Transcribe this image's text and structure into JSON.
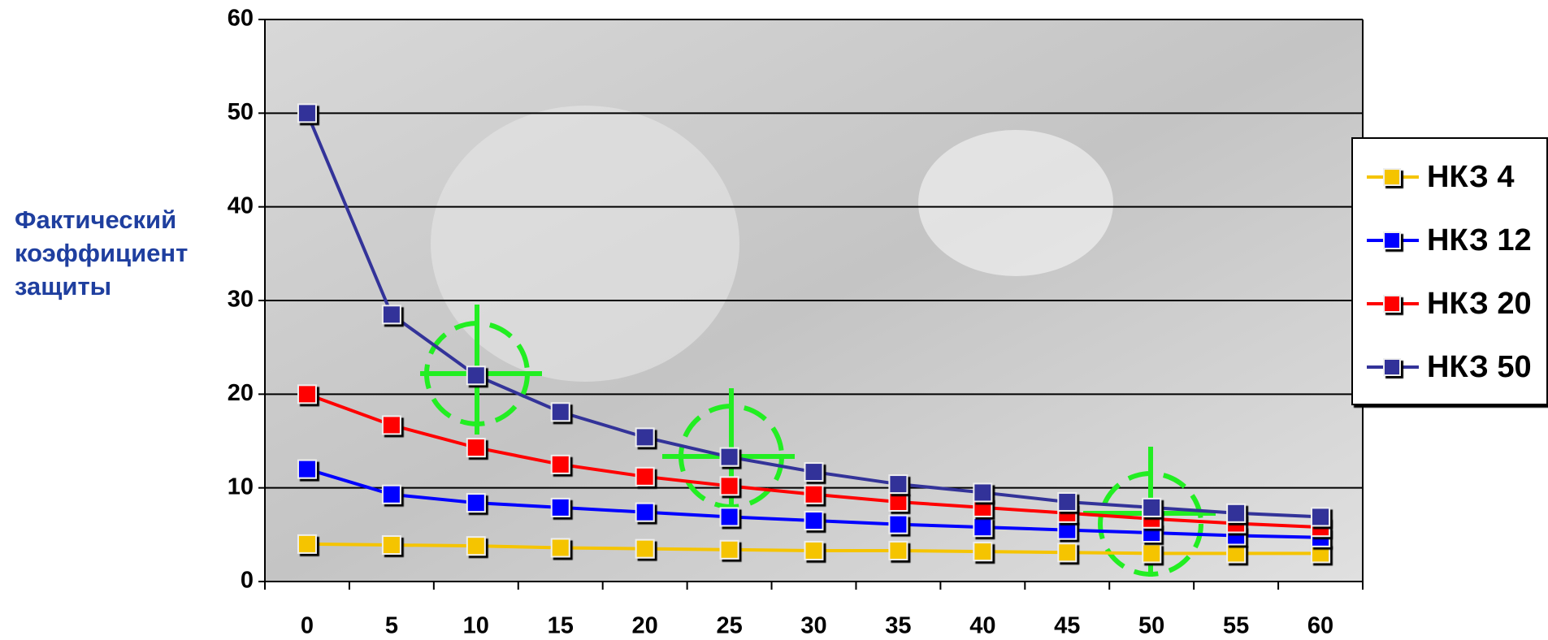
{
  "chart_data": {
    "type": "line",
    "y_label": "Фактический коэффициент защиты",
    "categories": [
      "0",
      "5",
      "10",
      "15",
      "20",
      "25",
      "30",
      "35",
      "40",
      "45",
      "50",
      "55",
      "60"
    ],
    "series": [
      {
        "name": "НКЗ 4",
        "color": "#f5c400",
        "values": [
          4,
          3.9,
          3.8,
          3.6,
          3.5,
          3.4,
          3.3,
          3.3,
          3.2,
          3.1,
          3.0,
          3.0,
          3.0
        ]
      },
      {
        "name": "НКЗ 12",
        "color": "#0000ff",
        "values": [
          12,
          9.3,
          8.4,
          7.9,
          7.4,
          6.9,
          6.5,
          6.1,
          5.8,
          5.5,
          5.2,
          4.9,
          4.7
        ]
      },
      {
        "name": "НКЗ 20",
        "color": "#ff0000",
        "values": [
          20,
          16.7,
          14.3,
          12.5,
          11.2,
          10.2,
          9.3,
          8.5,
          7.9,
          7.3,
          6.7,
          6.2,
          5.8
        ]
      },
      {
        "name": "НКЗ 50",
        "color": "#333399",
        "values": [
          50,
          28.5,
          22,
          18.1,
          15.4,
          13.3,
          11.7,
          10.4,
          9.5,
          8.5,
          7.9,
          7.3,
          6.9
        ]
      }
    ],
    "ylim": [
      0,
      60
    ],
    "yticks": [
      0,
      10,
      20,
      30,
      40,
      50,
      60
    ],
    "grid": true,
    "legend": "right"
  }
}
